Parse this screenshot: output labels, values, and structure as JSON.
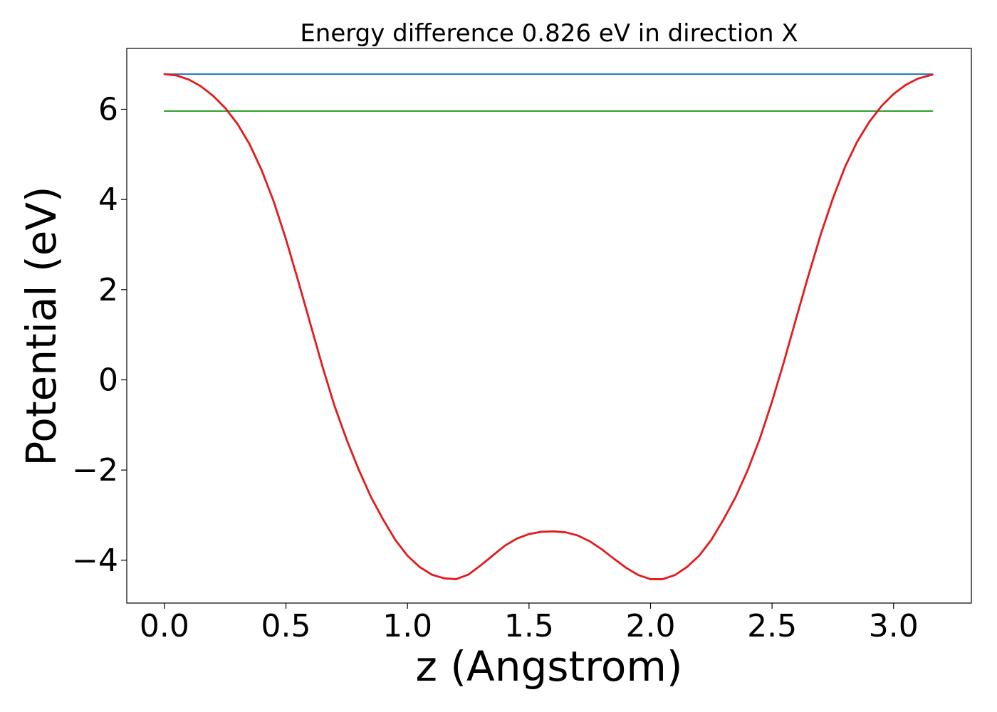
{
  "chart_data": {
    "type": "line",
    "title": "Energy difference 0.826 eV in direction X",
    "xlabel": "z (Angstrom)",
    "ylabel": "Potential (eV)",
    "xlim": [
      -0.155,
      3.32
    ],
    "ylim": [
      -4.95,
      7.35
    ],
    "xticks": [
      0.0,
      0.5,
      1.0,
      1.5,
      2.0,
      2.5,
      3.0
    ],
    "xtick_labels": [
      "0.0",
      "0.5",
      "1.0",
      "1.5",
      "2.0",
      "2.5",
      "3.0"
    ],
    "yticks": [
      -4,
      -2,
      0,
      2,
      4,
      6
    ],
    "ytick_labels": [
      "−4",
      "−2",
      "0",
      "2",
      "4",
      "6"
    ],
    "grid": false,
    "series": [
      {
        "color": "#1f77b4",
        "x": [
          0.0,
          3.16
        ],
        "y": [
          6.78,
          6.78
        ]
      },
      {
        "color": "#2ca02c",
        "x": [
          0.0,
          3.16
        ],
        "y": [
          5.96,
          5.96
        ]
      },
      {
        "color": "#e41a1c",
        "x": [
          0.0,
          0.05,
          0.1,
          0.15,
          0.2,
          0.25,
          0.3,
          0.35,
          0.4,
          0.45,
          0.5,
          0.55,
          0.6,
          0.65,
          0.7,
          0.75,
          0.8,
          0.85,
          0.9,
          0.95,
          1.0,
          1.05,
          1.1,
          1.15,
          1.2,
          1.25,
          1.3,
          1.35,
          1.4,
          1.45,
          1.5,
          1.55,
          1.6,
          1.65,
          1.7,
          1.75,
          1.8,
          1.85,
          1.9,
          1.95,
          2.0,
          2.05,
          2.1,
          2.15,
          2.2,
          2.25,
          2.3,
          2.35,
          2.4,
          2.45,
          2.5,
          2.55,
          2.6,
          2.65,
          2.7,
          2.75,
          2.8,
          2.85,
          2.9,
          2.95,
          3.0,
          3.05,
          3.1,
          3.16
        ],
        "y": [
          6.78,
          6.75,
          6.66,
          6.51,
          6.3,
          6.03,
          5.68,
          5.23,
          4.65,
          3.95,
          3.12,
          2.2,
          1.25,
          0.3,
          -0.58,
          -1.33,
          -2.0,
          -2.6,
          -3.1,
          -3.55,
          -3.9,
          -4.15,
          -4.32,
          -4.4,
          -4.42,
          -4.32,
          -4.12,
          -3.9,
          -3.68,
          -3.52,
          -3.42,
          -3.37,
          -3.36,
          -3.38,
          -3.45,
          -3.58,
          -3.76,
          -3.97,
          -4.17,
          -4.33,
          -4.42,
          -4.42,
          -4.33,
          -4.15,
          -3.9,
          -3.55,
          -3.1,
          -2.6,
          -2.0,
          -1.3,
          -0.48,
          0.42,
          1.38,
          2.32,
          3.22,
          4.02,
          4.72,
          5.28,
          5.72,
          6.07,
          6.34,
          6.54,
          6.68,
          6.77
        ]
      }
    ]
  }
}
